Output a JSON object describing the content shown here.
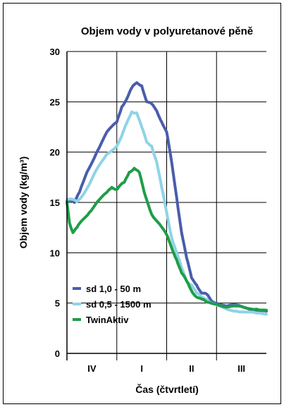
{
  "chart_data": {
    "type": "line",
    "title": "Objem vody v polyuretanové pěně",
    "xlabel": "Čas (čtvrtletí)",
    "ylabel": "Objem vody (kg/m³)",
    "ylim": [
      0,
      30
    ],
    "yticks": [
      "0",
      "5",
      "10",
      "15",
      "20",
      "25",
      "30"
    ],
    "categories": [
      "IV",
      "I",
      "II",
      "III"
    ],
    "xlim": [
      0,
      4
    ],
    "grid": true,
    "legend_position": "lower-left",
    "series": [
      {
        "name": "sd 1,0 - 50 m",
        "color": "#4a5dab",
        "x": [
          0.0,
          0.08,
          0.15,
          0.25,
          0.4,
          0.6,
          0.8,
          1.0,
          1.1,
          1.2,
          1.3,
          1.4,
          1.5,
          1.6,
          1.7,
          1.8,
          1.9,
          2.0,
          2.1,
          2.2,
          2.3,
          2.4,
          2.5,
          2.6,
          2.7,
          2.8,
          2.9,
          3.0,
          3.2,
          3.4,
          3.6,
          3.8,
          4.0
        ],
        "y": [
          15.2,
          15.3,
          15.0,
          16.0,
          18.0,
          20.0,
          22.0,
          23.0,
          24.5,
          25.3,
          26.4,
          26.9,
          26.6,
          25.0,
          24.8,
          24.1,
          23.0,
          22.0,
          19.0,
          15.5,
          12.0,
          9.5,
          7.5,
          6.8,
          6.0,
          5.9,
          5.2,
          5.0,
          4.7,
          4.8,
          4.5,
          4.3,
          4.2
        ]
      },
      {
        "name": "sd 0,5 - 1500 m",
        "color": "#8fd3e6",
        "x": [
          0.0,
          0.1,
          0.2,
          0.3,
          0.45,
          0.6,
          0.8,
          1.0,
          1.1,
          1.2,
          1.3,
          1.4,
          1.5,
          1.6,
          1.7,
          1.8,
          1.9,
          2.0,
          2.1,
          2.2,
          2.3,
          2.4,
          2.5,
          2.6,
          2.7,
          2.8,
          2.9,
          3.0,
          3.2,
          3.4,
          3.6,
          3.8,
          4.0
        ],
        "y": [
          15.3,
          15.3,
          15.1,
          15.6,
          16.8,
          18.3,
          19.8,
          20.6,
          21.6,
          22.9,
          24.0,
          23.9,
          22.5,
          21.0,
          20.6,
          19.0,
          16.5,
          14.0,
          11.5,
          10.0,
          8.5,
          7.2,
          6.8,
          6.0,
          5.6,
          5.4,
          5.0,
          4.8,
          4.4,
          4.2,
          4.1,
          4.0,
          3.9
        ]
      },
      {
        "name": "TwinAktiv",
        "color": "#1e9d48",
        "x": [
          0.0,
          0.05,
          0.12,
          0.2,
          0.3,
          0.45,
          0.6,
          0.8,
          0.9,
          1.0,
          1.05,
          1.15,
          1.25,
          1.35,
          1.45,
          1.55,
          1.7,
          1.85,
          2.0,
          2.1,
          2.2,
          2.3,
          2.4,
          2.5,
          2.6,
          2.7,
          2.8,
          3.0,
          3.2,
          3.4,
          3.6,
          3.8,
          4.0
        ],
        "y": [
          15.0,
          13.0,
          12.0,
          12.5,
          13.2,
          14.0,
          15.0,
          16.0,
          16.5,
          16.3,
          16.6,
          17.0,
          18.0,
          18.4,
          18.0,
          16.0,
          13.8,
          12.9,
          11.8,
          10.5,
          9.3,
          8.0,
          7.2,
          6.2,
          5.6,
          5.4,
          5.1,
          4.9,
          4.6,
          4.7,
          4.5,
          4.4,
          4.3
        ]
      }
    ]
  }
}
